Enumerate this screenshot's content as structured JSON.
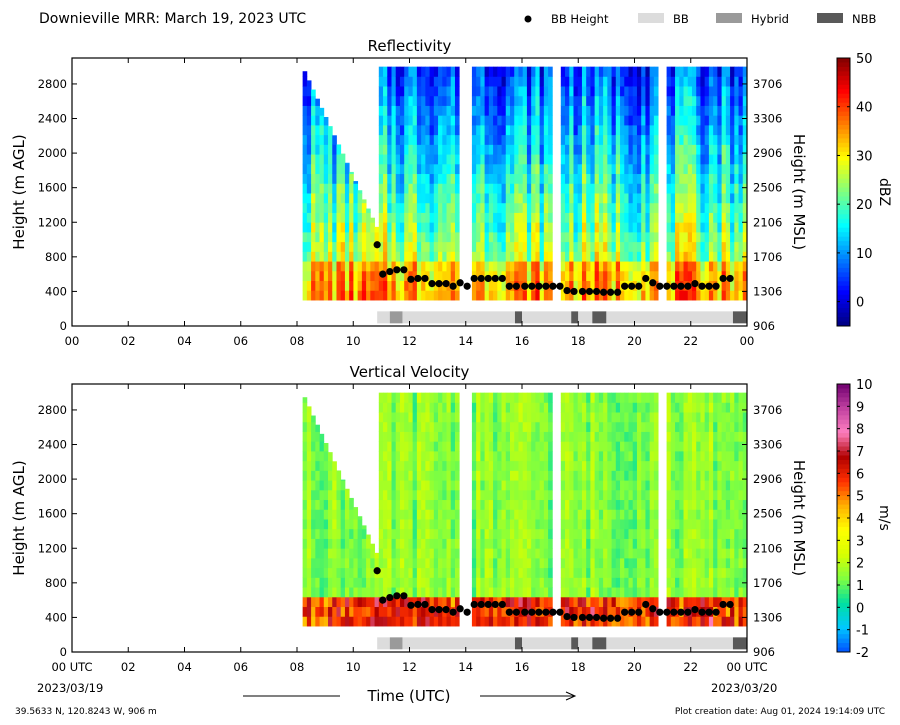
{
  "header": {
    "title": "Downieville MRR:  March 19, 2023 UTC",
    "legend": [
      {
        "label": "BB Height",
        "kind": "dot",
        "color": "#000000"
      },
      {
        "label": "BB",
        "kind": "box",
        "color": "#dcdcdc"
      },
      {
        "label": "Hybrid",
        "kind": "box",
        "color": "#9a9a9a"
      },
      {
        "label": "NBB",
        "kind": "box",
        "color": "#595959"
      }
    ]
  },
  "footer": {
    "start_date": "2023/03/19",
    "end_date": "2023/03/20",
    "time_label": "Time (UTC)",
    "location": "39.5633 N, 120.8243 W, 906 m",
    "creation": "Plot creation date: Aug 01, 2024 19:14:09 UTC"
  },
  "chart_data": [
    {
      "type": "heatmap",
      "title": "Reflectivity",
      "ylabel": "Height (m AGL)",
      "y2label": "Height (m MSL)",
      "colorbar_label": "dBZ",
      "xlim": [
        0,
        24
      ],
      "ylim": [
        0,
        3100
      ],
      "x_ticks": [
        "00",
        "02",
        "04",
        "06",
        "08",
        "10",
        "12",
        "14",
        "16",
        "18",
        "20",
        "22",
        "00"
      ],
      "y_ticks": [
        0,
        400,
        800,
        1200,
        1600,
        2000,
        2400,
        2800
      ],
      "y2_ticks": [
        "906",
        "1306",
        "1706",
        "2106",
        "2506",
        "2906",
        "3306",
        "3706"
      ],
      "colorbar_range": [
        -5,
        50
      ],
      "colorbar_ticks": [
        0,
        10,
        20,
        30,
        40,
        50
      ],
      "colors": [
        "#00007f",
        "#0000ff",
        "#0080ff",
        "#00ffff",
        "#80ff80",
        "#ffff00",
        "#ff8000",
        "#ff0000",
        "#7f0000"
      ]
    },
    {
      "type": "heatmap",
      "title": "Vertical Velocity",
      "ylabel": "Height (m AGL)",
      "y2label": "Height (m MSL)",
      "colorbar_label": "m/s",
      "xlim": [
        0,
        24
      ],
      "ylim": [
        0,
        3100
      ],
      "x_ticks": [
        "00 UTC",
        "02",
        "04",
        "06",
        "08",
        "10",
        "12",
        "14",
        "16",
        "18",
        "20",
        "22",
        "00 UTC"
      ],
      "y_ticks": [
        0,
        400,
        800,
        1200,
        1600,
        2000,
        2400,
        2800
      ],
      "y2_ticks": [
        "906",
        "1306",
        "1706",
        "2106",
        "2506",
        "2906",
        "3306",
        "3706"
      ],
      "colorbar_range": [
        -2,
        10
      ],
      "colorbar_ticks": [
        -2,
        -1,
        0,
        1,
        2,
        3,
        4,
        5,
        6,
        7,
        8,
        9,
        10
      ],
      "colors": [
        "#0050ff",
        "#00c8ff",
        "#00e0a0",
        "#80ff40",
        "#d8ff00",
        "#ffff00",
        "#ffb000",
        "#ff3000",
        "#b00000",
        "#ff80c0",
        "#c040a0",
        "#700070"
      ]
    }
  ],
  "bb_height": {
    "times": [
      10.85,
      11.05,
      11.3,
      11.55,
      11.8,
      12.05,
      12.3,
      12.55,
      12.8,
      13.05,
      13.3,
      13.55,
      13.8,
      14.05,
      14.3,
      14.55,
      14.8,
      15.05,
      15.3,
      15.55,
      15.8,
      16.1,
      16.35,
      16.6,
      16.85,
      17.1,
      17.35,
      17.6,
      17.85,
      18.15,
      18.4,
      18.65,
      18.9,
      19.15,
      19.4,
      19.65,
      19.9,
      20.15,
      20.4,
      20.65,
      20.9,
      21.15,
      21.4,
      21.65,
      21.9,
      22.15,
      22.4,
      22.65,
      22.9,
      23.15,
      23.4
    ],
    "heights": [
      940,
      600,
      630,
      650,
      650,
      540,
      550,
      550,
      490,
      490,
      490,
      460,
      500,
      460,
      550,
      550,
      550,
      550,
      550,
      460,
      460,
      460,
      460,
      460,
      460,
      460,
      460,
      410,
      400,
      400,
      400,
      400,
      390,
      390,
      390,
      460,
      460,
      460,
      550,
      500,
      460,
      460,
      460,
      460,
      460,
      490,
      460,
      460,
      460,
      550,
      550
    ]
  },
  "bb_type_strip": {
    "start": 10.85,
    "end": 24,
    "segments": [
      {
        "from": 10.85,
        "to": 11.3,
        "type": "BB"
      },
      {
        "from": 11.3,
        "to": 11.75,
        "type": "Hybrid"
      },
      {
        "from": 11.75,
        "to": 15.75,
        "type": "BB"
      },
      {
        "from": 15.75,
        "to": 16.0,
        "type": "NBB"
      },
      {
        "from": 16.0,
        "to": 17.75,
        "type": "BB"
      },
      {
        "from": 17.75,
        "to": 18.0,
        "type": "NBB"
      },
      {
        "from": 18.0,
        "to": 18.5,
        "type": "BB"
      },
      {
        "from": 18.5,
        "to": 19.0,
        "type": "NBB"
      },
      {
        "from": 19.0,
        "to": 23.5,
        "type": "BB"
      },
      {
        "from": 23.5,
        "to": 24.0,
        "type": "NBB"
      }
    ]
  },
  "echo_extent": {
    "onset_time": 8.2,
    "onset_top": 3000,
    "full_time": 10.9,
    "cutoff_height": 1100,
    "bottom": 300,
    "gaps": [
      [
        13.8,
        14.15
      ],
      [
        17.1,
        17.35
      ],
      [
        20.85,
        21.15
      ]
    ]
  }
}
